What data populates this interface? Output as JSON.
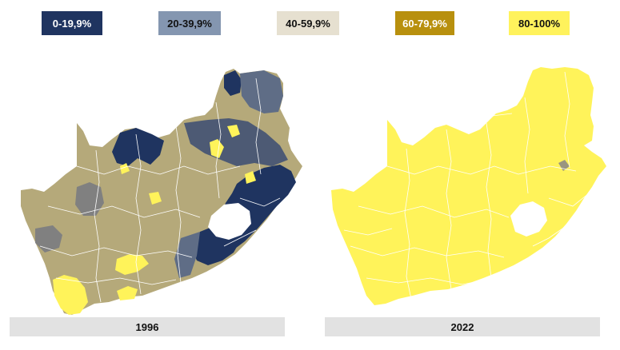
{
  "legend": [
    {
      "label": "0-19,9%",
      "color": "#1f3460",
      "text_color": "#ffffff"
    },
    {
      "label": "20-39,9%",
      "color": "#8496b0",
      "text_color": "#111111"
    },
    {
      "label": "40-59,9%",
      "color": "#e6e0d0",
      "text_color": "#111111"
    },
    {
      "label": "60-79,9%",
      "color": "#b8900e",
      "text_color": "#ffffff"
    },
    {
      "label": "80-100%",
      "color": "#fff25c",
      "text_color": "#111111"
    }
  ],
  "maps": [
    {
      "year_label": "1996",
      "base_color": "#b5a97a"
    },
    {
      "year_label": "2022",
      "base_color": "#fff35a"
    }
  ],
  "colors": {
    "lesotho": "#ffffff",
    "boundary_1996": "#ffffff",
    "boundary_2022": "#ffffff"
  }
}
